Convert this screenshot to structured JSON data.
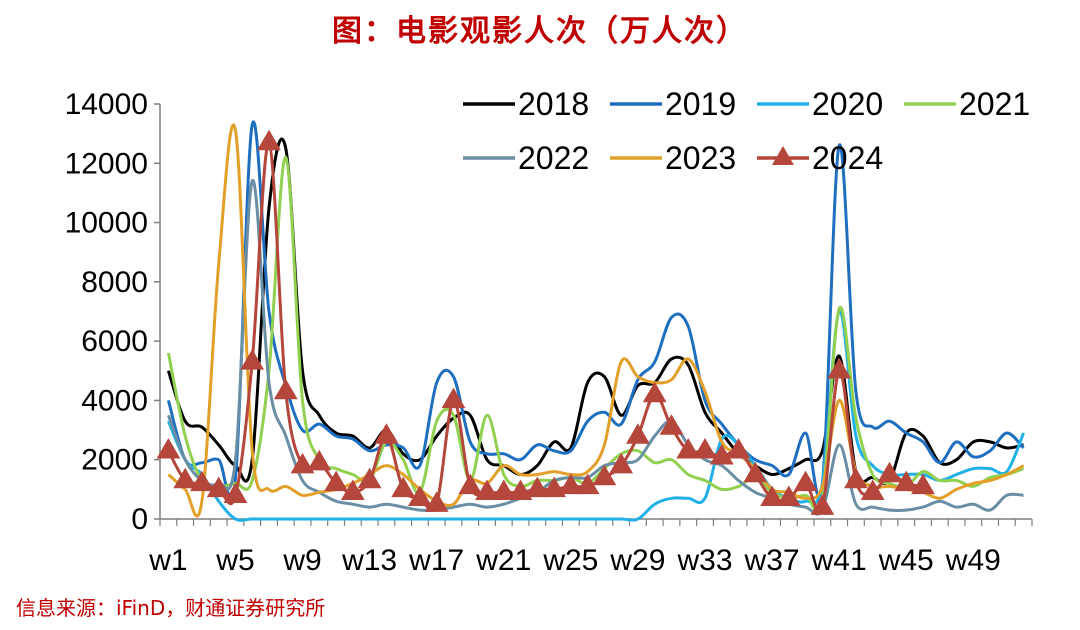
{
  "title": "图：电影观影人次（万人次）",
  "source": "信息来源：iFinD，财通证券研究所",
  "chart_data": {
    "type": "line",
    "ylim": [
      0,
      14000
    ],
    "yticks": [
      "0",
      "2000",
      "4000",
      "6000",
      "8000",
      "10000",
      "12000",
      "14000"
    ],
    "xticks": [
      {
        "week": 1,
        "label": "w1"
      },
      {
        "week": 5,
        "label": "w5"
      },
      {
        "week": 9,
        "label": "w9"
      },
      {
        "week": 13,
        "label": "w13"
      },
      {
        "week": 17,
        "label": "w17"
      },
      {
        "week": 21,
        "label": "w21"
      },
      {
        "week": 25,
        "label": "w25"
      },
      {
        "week": 29,
        "label": "w29"
      },
      {
        "week": 33,
        "label": "w33"
      },
      {
        "week": 37,
        "label": "w37"
      },
      {
        "week": 41,
        "label": "w41"
      },
      {
        "week": 45,
        "label": "w45"
      },
      {
        "week": 49,
        "label": "w49"
      }
    ],
    "legend_position": "top-right",
    "series": [
      {
        "name": "2018",
        "color": "#000000",
        "marker": "none",
        "values": [
          5000,
          3300,
          3100,
          2500,
          1800,
          2000,
          10500,
          12500,
          5000,
          3500,
          2900,
          2800,
          2400,
          3000,
          2200,
          2000,
          2800,
          3400,
          3500,
          2000,
          1800,
          1500,
          1800,
          2600,
          2400,
          4600,
          4800,
          3500,
          4500,
          4600,
          5400,
          5200,
          3600,
          2900,
          2200,
          1800,
          1500,
          1700,
          2000,
          2300,
          5500,
          1600,
          1400,
          1300,
          2900,
          2800,
          1900,
          2000,
          2600,
          2600,
          2400,
          2500
        ]
      },
      {
        "name": "2019",
        "color": "#1f6fc0",
        "marker": "none",
        "values": [
          4000,
          2000,
          1900,
          2000,
          1400,
          13300,
          7000,
          4500,
          3000,
          3200,
          2800,
          2700,
          2300,
          2500,
          2400,
          1800,
          4600,
          4800,
          2600,
          2200,
          2200,
          2000,
          2500,
          2300,
          2300,
          3300,
          3600,
          3200,
          4700,
          5300,
          6800,
          6500,
          4000,
          3200,
          2500,
          2000,
          1800,
          1500,
          2900,
          1200,
          12600,
          4300,
          3100,
          3300,
          2900,
          2600,
          1900,
          2600,
          2100,
          2300,
          2900,
          2400
        ]
      },
      {
        "name": "2020",
        "color": "#22b0e8",
        "marker": "none",
        "values": [
          3300,
          2000,
          1500,
          600,
          0,
          0,
          0,
          0,
          0,
          0,
          0,
          0,
          0,
          0,
          0,
          0,
          0,
          0,
          0,
          0,
          0,
          0,
          0,
          0,
          0,
          0,
          0,
          0,
          0,
          500,
          700,
          700,
          700,
          2700,
          2500,
          1800,
          1000,
          700,
          600,
          1200,
          7000,
          2800,
          1800,
          1500,
          1500,
          1500,
          1300,
          1500,
          1700,
          1700,
          1600,
          2900
        ]
      },
      {
        "name": "2021",
        "color": "#92d050",
        "marker": "none",
        "values": [
          5600,
          2800,
          1300,
          1100,
          1200,
          1300,
          5000,
          12200,
          4000,
          2000,
          1700,
          1500,
          1300,
          2600,
          2000,
          900,
          3300,
          3500,
          1300,
          3500,
          1500,
          1100,
          1300,
          1300,
          1400,
          1200,
          1700,
          2200,
          2300,
          1900,
          2000,
          1500,
          1300,
          1000,
          1100,
          1400,
          900,
          700,
          800,
          700,
          7100,
          3400,
          1500,
          1200,
          1100,
          1600,
          1300,
          1300,
          1100,
          1400,
          1500,
          1700
        ]
      },
      {
        "name": "2022",
        "color": "#6a8fa5",
        "marker": "none",
        "values": [
          3500,
          2000,
          1300,
          1200,
          2000,
          11400,
          4600,
          2800,
          1300,
          900,
          600,
          500,
          400,
          500,
          400,
          300,
          300,
          400,
          500,
          400,
          500,
          700,
          900,
          1300,
          1400,
          1400,
          1800,
          1900,
          2000,
          2800,
          3300,
          2500,
          2000,
          1800,
          1300,
          900,
          700,
          500,
          400,
          300,
          2500,
          500,
          400,
          300,
          300,
          400,
          600,
          400,
          500,
          300,
          800,
          800
        ]
      },
      {
        "name": "2023",
        "color": "#e2a02a",
        "marker": "none",
        "values": [
          1500,
          1000,
          600,
          8600,
          13100,
          2300,
          1000,
          1100,
          800,
          900,
          1000,
          1200,
          1500,
          1800,
          1500,
          1000,
          600,
          500,
          1300,
          1200,
          1800,
          1500,
          1500,
          1600,
          1500,
          1600,
          2500,
          5300,
          4800,
          4600,
          4700,
          5400,
          4300,
          2600,
          2200,
          1700,
          1000,
          900,
          700,
          1100,
          4000,
          1600,
          1100,
          1100,
          1000,
          900,
          700,
          1000,
          1200,
          1300,
          1500,
          1800
        ]
      },
      {
        "name": "2024",
        "color": "#b5463c",
        "marker": "triangle",
        "values": [
          2300,
          1300,
          1200,
          1000,
          800,
          5300,
          12700,
          4300,
          1800,
          1900,
          1200,
          900,
          1300,
          2800,
          1000,
          700,
          500,
          4000,
          1100,
          900,
          900,
          900,
          1000,
          1000,
          1100,
          1100,
          1400,
          1800,
          2800,
          4200,
          3100,
          2300,
          2300,
          2100,
          2300,
          1500,
          700,
          700,
          1200,
          400,
          5000,
          1300,
          900,
          1500,
          1200,
          1100
        ]
      }
    ]
  }
}
